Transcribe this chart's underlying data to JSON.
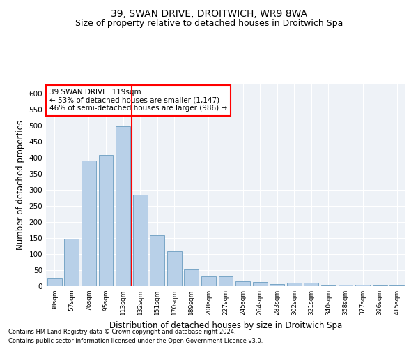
{
  "title1": "39, SWAN DRIVE, DROITWICH, WR9 8WA",
  "title2": "Size of property relative to detached houses in Droitwich Spa",
  "xlabel": "Distribution of detached houses by size in Droitwich Spa",
  "ylabel": "Number of detached properties",
  "categories": [
    "38sqm",
    "57sqm",
    "76sqm",
    "95sqm",
    "113sqm",
    "132sqm",
    "151sqm",
    "170sqm",
    "189sqm",
    "208sqm",
    "227sqm",
    "245sqm",
    "264sqm",
    "283sqm",
    "302sqm",
    "321sqm",
    "340sqm",
    "358sqm",
    "377sqm",
    "396sqm",
    "415sqm"
  ],
  "values": [
    25,
    148,
    390,
    408,
    497,
    285,
    158,
    108,
    53,
    30,
    30,
    15,
    12,
    7,
    10,
    10,
    3,
    5,
    5,
    3,
    3
  ],
  "bar_color": "#b8d0e8",
  "bar_edge_color": "#6a9cc0",
  "vline_color": "red",
  "annotation_text": "39 SWAN DRIVE: 119sqm\n← 53% of detached houses are smaller (1,147)\n46% of semi-detached houses are larger (986) →",
  "annotation_box_color": "white",
  "annotation_box_edge": "red",
  "ylim": [
    0,
    630
  ],
  "yticks": [
    0,
    50,
    100,
    150,
    200,
    250,
    300,
    350,
    400,
    450,
    500,
    550,
    600
  ],
  "background_color": "#eef2f7",
  "footer1": "Contains HM Land Registry data © Crown copyright and database right 2024.",
  "footer2": "Contains public sector information licensed under the Open Government Licence v3.0.",
  "title1_fontsize": 10,
  "title2_fontsize": 9,
  "xlabel_fontsize": 8.5,
  "ylabel_fontsize": 8.5,
  "annotation_fontsize": 7.5,
  "footer_fontsize": 6
}
